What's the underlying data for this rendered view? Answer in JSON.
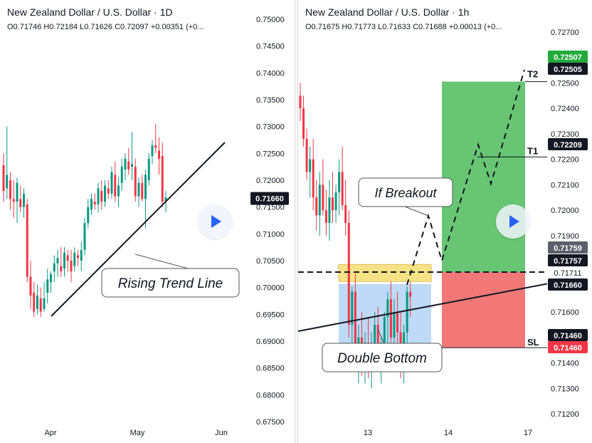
{
  "left_panel": {
    "title": "New Zealand Dollar / U.S. Dollar · 1D",
    "ohlc": "O0.71746 H0.72184 L0.71626 C0.72097 +0.00351 (+0..."
  },
  "right_panel": {
    "title": "New Zealand Dollar / U.S. Dollar · 1h",
    "ohlc": "O0.71675 H0.71773 L0.71633 C0.71688 +0.00013 (+0..."
  },
  "colors": {
    "up": "#26a69a",
    "down": "#ef5350",
    "up_fill": "#089981",
    "down_fill": "#f23645",
    "accent": "#2962ff",
    "target_zone": "#4cbb5a",
    "stop_zone": "#f06060",
    "pattern_zone": "#b3d4f5",
    "breakout_zone": "#f7df7a"
  },
  "icons": {
    "play": "play-icon"
  },
  "chart_data": [
    {
      "type": "candlestick",
      "title": "New Zealand Dollar / U.S. Dollar · 1D",
      "xlabel": "",
      "ylabel": "",
      "ylim": [
        0.675,
        0.75
      ],
      "y_ticks": [
        "0.75000",
        "0.74500",
        "0.74000",
        "0.73500",
        "0.73000",
        "0.72500",
        "0.72000",
        "0.71500",
        "0.71000",
        "0.70500",
        "0.70000",
        "0.69500",
        "0.69000",
        "0.68500",
        "0.68000",
        "0.67500"
      ],
      "x_ticks": [
        "Apr",
        "May",
        "Jun"
      ],
      "price_label": "0.71660",
      "annotations": [
        "Rising Trend Line"
      ],
      "candles": [
        [
          0.7228,
          0.725,
          0.716,
          0.718
        ],
        [
          0.7185,
          0.73,
          0.7165,
          0.721
        ],
        [
          0.72,
          0.7215,
          0.7145,
          0.7165
        ],
        [
          0.7165,
          0.72,
          0.713,
          0.716
        ],
        [
          0.716,
          0.7205,
          0.712,
          0.7195
        ],
        [
          0.7165,
          0.719,
          0.714,
          0.715
        ],
        [
          0.715,
          0.7185,
          0.713,
          0.7175
        ],
        [
          0.7155,
          0.7165,
          0.701,
          0.702
        ],
        [
          0.702,
          0.705,
          0.696,
          0.6985
        ],
        [
          0.699,
          0.701,
          0.6945,
          0.6955
        ],
        [
          0.696,
          0.7005,
          0.695,
          0.6985
        ],
        [
          0.698,
          0.7,
          0.6945,
          0.6955
        ],
        [
          0.696,
          0.701,
          0.6955,
          0.698
        ],
        [
          0.699,
          0.7035,
          0.697,
          0.7015
        ],
        [
          0.701,
          0.703,
          0.699,
          0.7025
        ],
        [
          0.703,
          0.706,
          0.701,
          0.7045
        ],
        [
          0.7045,
          0.707,
          0.702,
          0.7055
        ],
        [
          0.704,
          0.7075,
          0.702,
          0.703
        ],
        [
          0.7035,
          0.7075,
          0.702,
          0.7065
        ],
        [
          0.706,
          0.707,
          0.703,
          0.705
        ],
        [
          0.705,
          0.707,
          0.701,
          0.703
        ],
        [
          0.704,
          0.7075,
          0.703,
          0.7065
        ],
        [
          0.706,
          0.707,
          0.704,
          0.7055
        ],
        [
          0.705,
          0.7085,
          0.703,
          0.707
        ],
        [
          0.707,
          0.713,
          0.706,
          0.712
        ],
        [
          0.712,
          0.7165,
          0.711,
          0.715
        ],
        [
          0.7145,
          0.7175,
          0.7135,
          0.7165
        ],
        [
          0.716,
          0.7175,
          0.7145,
          0.7155
        ],
        [
          0.7155,
          0.7195,
          0.714,
          0.7185
        ],
        [
          0.718,
          0.72,
          0.7145,
          0.716
        ],
        [
          0.716,
          0.72,
          0.715,
          0.719
        ],
        [
          0.7185,
          0.72,
          0.7165,
          0.7175
        ],
        [
          0.7175,
          0.7225,
          0.7165,
          0.7215
        ],
        [
          0.721,
          0.7235,
          0.716,
          0.717
        ],
        [
          0.717,
          0.7205,
          0.715,
          0.719
        ],
        [
          0.7195,
          0.724,
          0.718,
          0.7225
        ],
        [
          0.722,
          0.725,
          0.72,
          0.724
        ],
        [
          0.7235,
          0.726,
          0.721,
          0.722
        ],
        [
          0.7225,
          0.729,
          0.72,
          0.723
        ],
        [
          0.7225,
          0.724,
          0.716,
          0.717
        ],
        [
          0.717,
          0.7205,
          0.715,
          0.7195
        ],
        [
          0.7195,
          0.721,
          0.716,
          0.7165
        ],
        [
          0.7165,
          0.722,
          0.711,
          0.721
        ],
        [
          0.72,
          0.725,
          0.719,
          0.724
        ],
        [
          0.7245,
          0.7275,
          0.723,
          0.7265
        ],
        [
          0.7265,
          0.7305,
          0.725,
          0.726
        ],
        [
          0.7255,
          0.728,
          0.721,
          0.724
        ],
        [
          0.7245,
          0.727,
          0.715,
          0.716
        ],
        [
          0.716,
          0.718,
          0.714,
          0.7168
        ]
      ]
    },
    {
      "type": "candlestick",
      "title": "New Zealand Dollar / U.S. Dollar · 1h",
      "xlabel": "",
      "ylabel": "",
      "ylim": [
        0.7115,
        0.7275
      ],
      "y_ticks": [
        "0.72700",
        "0.72600",
        "0.72500",
        "0.72400",
        "0.72300",
        "0.72200",
        "0.72100",
        "0.72000",
        "0.71900",
        "0.71800",
        "0.71700",
        "0.71600",
        "0.71500",
        "0.71400",
        "0.71300",
        "0.71200"
      ],
      "x_ticks": [
        "13",
        "14",
        "17"
      ],
      "price_badges": [
        {
          "label": "0.72507",
          "kind": "green"
        },
        {
          "label": "0.72505",
          "kind": "dark"
        },
        {
          "label": "0.72209",
          "kind": "dark"
        },
        {
          "label": "0.71759",
          "kind": "gray"
        },
        {
          "label": "0.71757",
          "kind": "dark"
        },
        {
          "label": "0.71711",
          "kind": "plain"
        },
        {
          "label": "0.71660",
          "kind": "dark"
        },
        {
          "label": "0.71460",
          "kind": "dark"
        },
        {
          "label": "0.71460",
          "kind": "red"
        }
      ],
      "levels": {
        "T2": "T2",
        "T1": "T1",
        "SL": "SL"
      },
      "annotations": [
        "If Breakout",
        "Double Bottom"
      ],
      "candles": [
        [
          0.7245,
          0.725,
          0.7235,
          0.724
        ],
        [
          0.724,
          0.7245,
          0.7225,
          0.7228
        ],
        [
          0.7228,
          0.7232,
          0.7212,
          0.7215
        ],
        [
          0.7215,
          0.7225,
          0.7205,
          0.722
        ],
        [
          0.722,
          0.7228,
          0.72,
          0.7205
        ],
        [
          0.7205,
          0.7212,
          0.7192,
          0.7198
        ],
        [
          0.7198,
          0.7215,
          0.719,
          0.721
        ],
        [
          0.721,
          0.722,
          0.7198,
          0.72
        ],
        [
          0.72,
          0.7208,
          0.719,
          0.7195
        ],
        [
          0.7195,
          0.7212,
          0.7188,
          0.7205
        ],
        [
          0.7205,
          0.7215,
          0.7195,
          0.72
        ],
        [
          0.72,
          0.721,
          0.7195,
          0.7207
        ],
        [
          0.7207,
          0.722,
          0.7198,
          0.7215
        ],
        [
          0.7215,
          0.7225,
          0.72,
          0.7202
        ],
        [
          0.7202,
          0.7212,
          0.719,
          0.7195
        ],
        [
          0.7195,
          0.72,
          0.715,
          0.7155
        ],
        [
          0.7155,
          0.717,
          0.7148,
          0.7168
        ],
        [
          0.7168,
          0.7175,
          0.7138,
          0.7142
        ],
        [
          0.7142,
          0.7155,
          0.7132,
          0.715
        ],
        [
          0.715,
          0.716,
          0.7135,
          0.714
        ],
        [
          0.714,
          0.7152,
          0.7132,
          0.7148
        ],
        [
          0.7148,
          0.7158,
          0.7134,
          0.7138
        ],
        [
          0.7138,
          0.7152,
          0.713,
          0.7145
        ],
        [
          0.7145,
          0.716,
          0.7138,
          0.7155
        ],
        [
          0.7155,
          0.7162,
          0.714,
          0.7142
        ],
        [
          0.7142,
          0.715,
          0.7132,
          0.7148
        ],
        [
          0.7148,
          0.716,
          0.714,
          0.7158
        ],
        [
          0.7158,
          0.7168,
          0.7145,
          0.7165
        ],
        [
          0.7165,
          0.7172,
          0.7148,
          0.715
        ],
        [
          0.715,
          0.7165,
          0.7142,
          0.716
        ],
        [
          0.716,
          0.7168,
          0.7148,
          0.7152
        ],
        [
          0.7152,
          0.716,
          0.7134,
          0.7138
        ],
        [
          0.7138,
          0.7155,
          0.7132,
          0.7152
        ],
        [
          0.7152,
          0.717,
          0.7148,
          0.7168
        ],
        [
          0.7168,
          0.7172,
          0.7158,
          0.7166
        ]
      ]
    }
  ]
}
